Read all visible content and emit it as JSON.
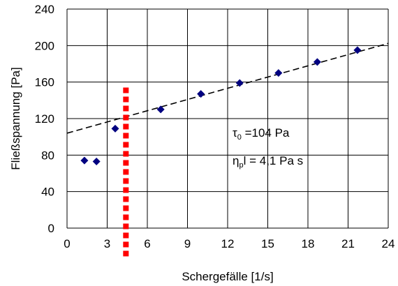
{
  "chart_data": {
    "type": "scatter",
    "xlabel": "Schergefälle  [1/s]",
    "ylabel": "Fließspannung  [Pa]",
    "xlim": [
      0,
      24
    ],
    "ylim": [
      0,
      240
    ],
    "x_ticks": [
      0,
      3,
      6,
      9,
      12,
      15,
      18,
      21,
      24
    ],
    "y_ticks": [
      0,
      40,
      80,
      120,
      160,
      200,
      240
    ],
    "grid": true,
    "series": [
      {
        "marker": "diamond",
        "color": "#000080",
        "points": [
          {
            "x": 1.3,
            "y": 74
          },
          {
            "x": 2.2,
            "y": 73
          },
          {
            "x": 3.6,
            "y": 109
          },
          {
            "x": 7.0,
            "y": 130
          },
          {
            "x": 10.0,
            "y": 147
          },
          {
            "x": 12.9,
            "y": 159
          },
          {
            "x": 15.8,
            "y": 170
          },
          {
            "x": 18.7,
            "y": 182
          },
          {
            "x": 21.7,
            "y": 195
          }
        ]
      }
    ],
    "fit_line": {
      "style": "dashed",
      "color": "#000000",
      "intercept": 104,
      "slope": 4.1,
      "x_range": [
        0,
        24
      ]
    },
    "marker_line": {
      "style": "dotted",
      "color": "#ff0000",
      "x": 4.4,
      "y_range": [
        -32,
        154
      ]
    },
    "annotations": {
      "tau_symbol": "τ",
      "tau_sub": "0",
      "tau_value": " =104 Pa",
      "eta_symbol": "η",
      "eta_sub": "p",
      "eta_value": "l = 4,1 Pa s"
    }
  }
}
